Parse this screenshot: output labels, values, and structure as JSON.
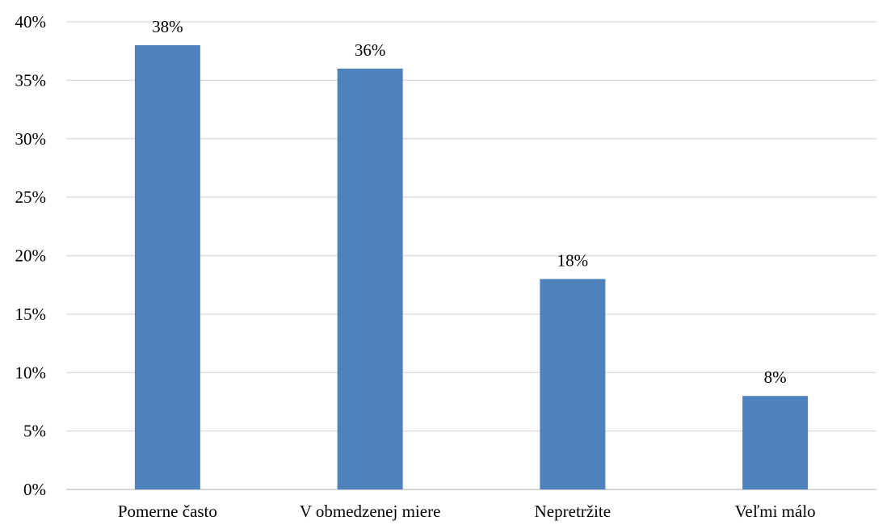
{
  "chart_data": {
    "type": "bar",
    "categories": [
      "Pomerne často",
      "V obmedzenej miere",
      "Nepretržite",
      "Veľmi málo"
    ],
    "values": [
      38,
      36,
      18,
      8
    ],
    "data_labels": [
      "38%",
      "36%",
      "18%",
      "8%"
    ],
    "y_ticks": [
      0,
      5,
      10,
      15,
      20,
      25,
      30,
      35,
      40
    ],
    "y_tick_labels": [
      "0%",
      "5%",
      "10%",
      "15%",
      "20%",
      "25%",
      "30%",
      "35%",
      "40%"
    ],
    "ylim": [
      0,
      40
    ],
    "grid": true,
    "legend": false,
    "bar_color": "#4f81bd",
    "grid_color": "#d9d9d9"
  }
}
